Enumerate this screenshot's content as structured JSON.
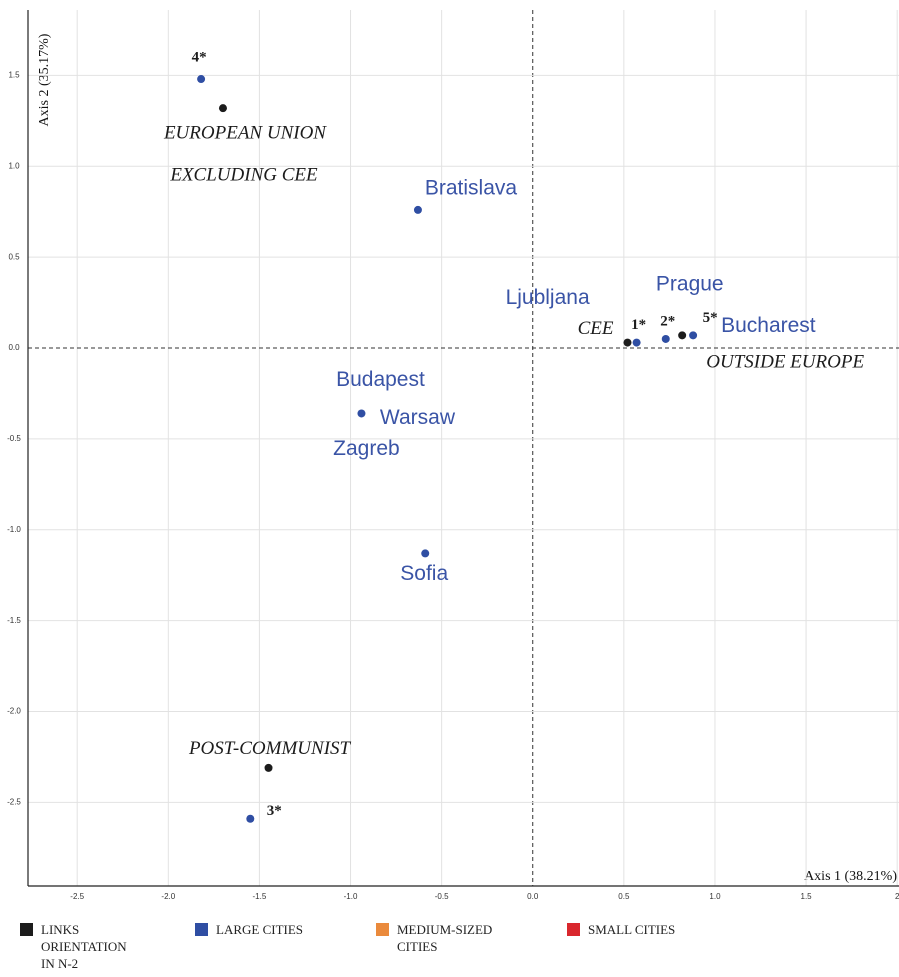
{
  "chart_data": {
    "type": "scatter",
    "xlabel": "Axis 1 (38.21%)",
    "ylabel": "Axis 2 (35.17%)",
    "xlim": [
      -2.77,
      2.01
    ],
    "ylim": [
      -2.96,
      1.86
    ],
    "xticks": [
      -2.5,
      {
        "value": -2.0,
        "label": "-2.0"
      },
      -1.5,
      {
        "value": -1.0,
        "label": "-1.0"
      },
      -0.5,
      {
        "value": 0.0,
        "label": "0.0"
      },
      0.5,
      {
        "value": 1.0,
        "label": "1.0"
      },
      1.5,
      2
    ],
    "yticks": [
      1.5,
      {
        "value": 1.0,
        "label": "1.0"
      },
      0.5,
      {
        "value": 0.0,
        "label": "0.0"
      },
      -0.5,
      {
        "value": -1.0,
        "label": "-1.0"
      },
      -1.5,
      {
        "value": -2.0,
        "label": "-2.0"
      },
      -2.5
    ],
    "grid": true,
    "series": [
      {
        "name": "LINKS ORIENTATION IN N-2",
        "color": "#1c1c1c",
        "x": [
          -1.7,
          0.52,
          0.82,
          -1.45
        ],
        "y": [
          1.32,
          0.03,
          0.07,
          -2.31
        ],
        "labels": [
          [
            "EUROPEAN UNION",
            "EXCLUDING CEE"
          ],
          [
            "CEE"
          ],
          [
            "OUTSIDE EUROPE"
          ],
          [
            "POST-COMMUNIST"
          ]
        ]
      },
      {
        "name": "LARGE CITIES",
        "color": "#2f4ea3",
        "x": [
          -1.82,
          -0.63,
          0.57,
          0.73,
          0.88,
          -0.94,
          -0.59,
          -1.55
        ],
        "y": [
          1.48,
          0.76,
          0.03,
          0.05,
          0.07,
          -0.36,
          -1.13,
          -2.59
        ],
        "labels": [
          [
            "4*"
          ],
          [
            "Bratislava"
          ],
          [
            "1*",
            "Ljubljana"
          ],
          [
            "2*",
            "Prague"
          ],
          [
            "5*",
            "Bucharest"
          ],
          [
            "Budapest",
            "Warsaw",
            "Zagreb"
          ],
          [
            "Sofia"
          ],
          [
            "3*"
          ]
        ]
      },
      {
        "name": "MEDIUM-SIZED CITIES",
        "color": "#ea8a3c",
        "x": [],
        "y": [],
        "labels": []
      },
      {
        "name": "SMALL CITIES",
        "color": "#d9272d",
        "x": [],
        "y": [],
        "labels": []
      }
    ]
  }
}
